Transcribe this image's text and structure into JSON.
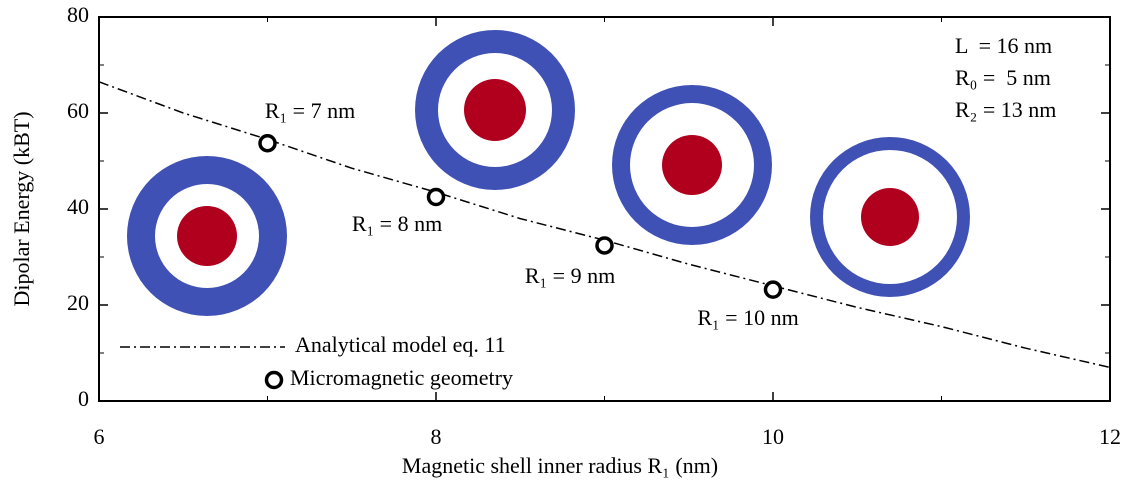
{
  "chart_data": {
    "type": "line-scatter",
    "xlabel": "Magnetic shell inner radius R₁ (nm)",
    "ylabel": "Dipolar Energy (kBT)",
    "xlim": [
      6,
      12
    ],
    "ylim": [
      0,
      80
    ],
    "xticks": [
      6,
      8,
      10,
      12
    ],
    "yticks": [
      0,
      20,
      40,
      60,
      80
    ],
    "xminor": [
      7,
      9,
      11
    ],
    "yminor": [
      10,
      30,
      50,
      70
    ],
    "series": [
      {
        "name": "Analytical model eq. 11",
        "color": "#000000",
        "style": "dashdot",
        "x": [
          6,
          6.5,
          7,
          7.5,
          8,
          8.5,
          9,
          9.5,
          10,
          10.5,
          11,
          11.5,
          12
        ],
        "values": [
          66.5,
          60,
          54.5,
          48.5,
          43.5,
          38,
          33.5,
          28.5,
          24,
          19.5,
          15.5,
          11,
          7
        ]
      },
      {
        "name": "Micromagnetic geometry",
        "color": "#000000",
        "style": "open-circle",
        "x": [
          7,
          8,
          9,
          10
        ],
        "values": [
          53.7,
          42.5,
          32.4,
          23.2
        ]
      }
    ],
    "annotations": [
      "R₁ = 7 nm",
      "R₁ = 8 nm",
      "R₁ = 9 nm",
      "R₁ = 10 nm"
    ],
    "parameters": [
      "L  = 16 nm",
      "R₀ =  5 nm",
      "R₂ = 13 nm"
    ],
    "legend": "lower-left"
  }
}
